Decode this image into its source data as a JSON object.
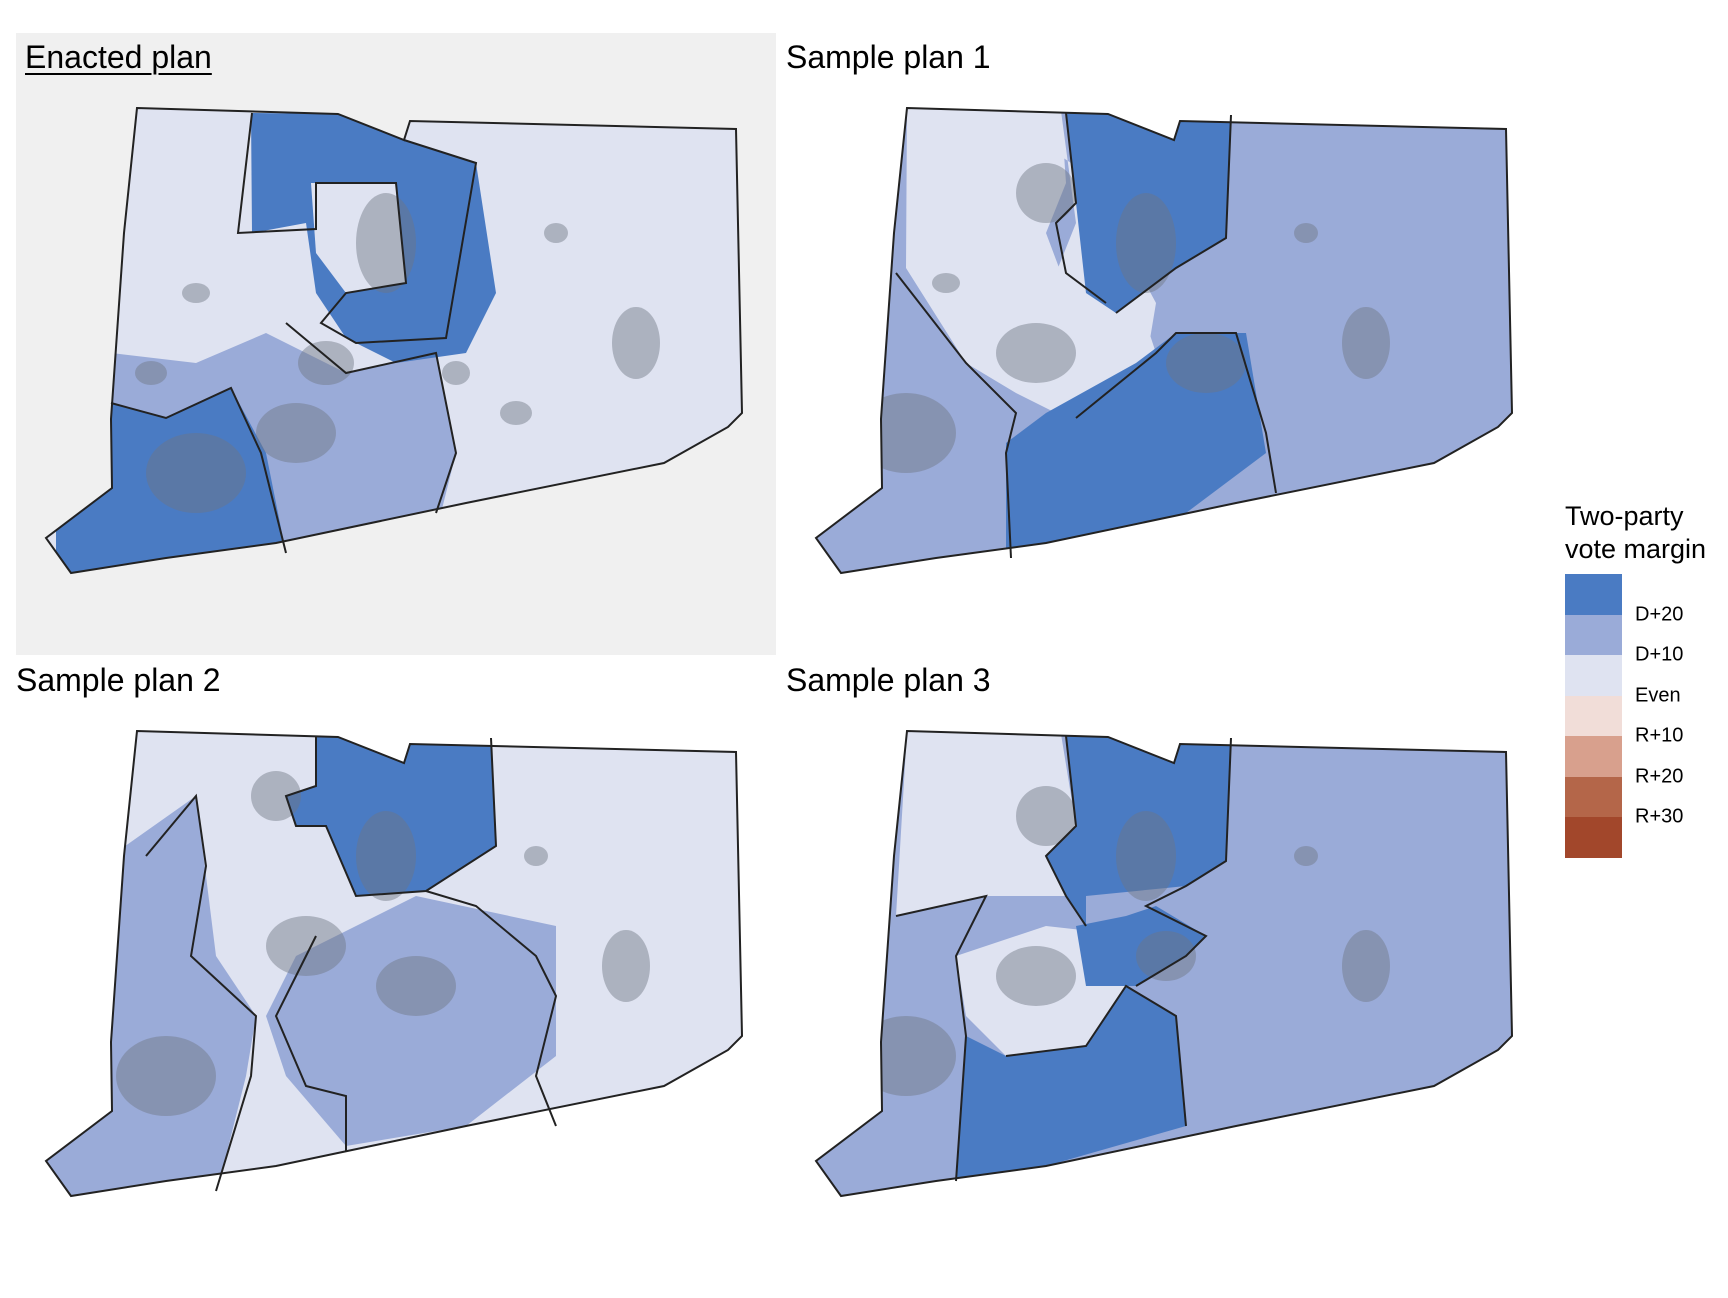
{
  "panels": [
    {
      "title": "Enacted plan",
      "highlighted": true
    },
    {
      "title": "Sample plan 1",
      "highlighted": false
    },
    {
      "title": "Sample plan 2",
      "highlighted": false
    },
    {
      "title": "Sample plan 3",
      "highlighted": false
    }
  ],
  "legend": {
    "title_line1": "Two-party",
    "title_line2": "vote margin",
    "colors": [
      "#4a7bc3",
      "#9aabd8",
      "#dfe3f1",
      "#f1ddd8",
      "#d8a08d",
      "#b46649",
      "#a2472b"
    ],
    "labels": [
      "D+20",
      "D+10",
      "Even",
      "R+10",
      "R+20",
      "R+30"
    ]
  },
  "palette": {
    "strong_dem": "#4a7bc3",
    "lean_dem": "#9aabd8",
    "even": "#dfe3f1",
    "urban_overlay": "#6e7583",
    "panel_highlight": "#f0f0f0"
  }
}
